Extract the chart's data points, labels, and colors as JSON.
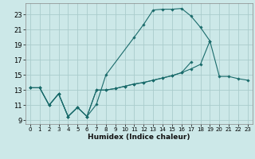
{
  "xlabel": "Humidex (Indice chaleur)",
  "bg_color": "#cce8e8",
  "grid_color": "#aacccc",
  "line_color": "#1a6b6b",
  "x_ticks": [
    0,
    1,
    2,
    3,
    4,
    5,
    6,
    7,
    8,
    9,
    10,
    11,
    12,
    13,
    14,
    15,
    16,
    17,
    18,
    19,
    20,
    21,
    22,
    23
  ],
  "y_ticks": [
    9,
    11,
    13,
    15,
    17,
    19,
    21,
    23
  ],
  "xlim": [
    -0.5,
    23.5
  ],
  "ylim": [
    8.5,
    24.5
  ],
  "series": [
    [
      13.3,
      13.3,
      11.0,
      12.5,
      9.5,
      10.7,
      9.5,
      11.1,
      15.0,
      null,
      null,
      20.0,
      21.7,
      23.6,
      23.7,
      23.7,
      23.8,
      22.8,
      21.3,
      19.5,
      null,
      null,
      null,
      null
    ],
    [
      13.3,
      13.3,
      11.0,
      12.5,
      9.5,
      10.7,
      9.5,
      13.0,
      13.0,
      13.2,
      13.5,
      13.8,
      14.0,
      14.3,
      14.6,
      14.9,
      15.3,
      15.8,
      16.4,
      19.5,
      14.8,
      14.8,
      14.5,
      14.3
    ],
    [
      13.3,
      13.3,
      11.0,
      12.5,
      9.5,
      10.7,
      9.5,
      13.0,
      13.0,
      13.2,
      13.5,
      13.8,
      14.0,
      14.3,
      14.6,
      14.9,
      15.3,
      16.7,
      null,
      null,
      null,
      null,
      null,
      null
    ]
  ]
}
